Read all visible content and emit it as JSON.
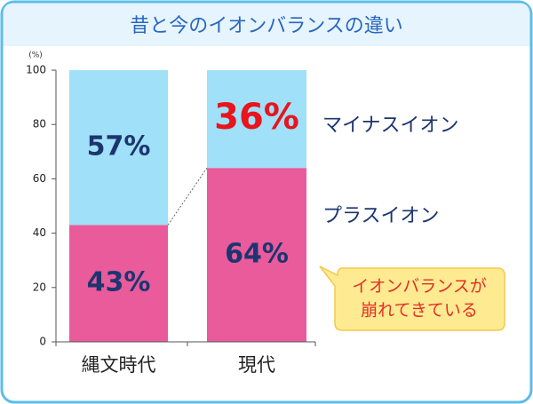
{
  "chart_data": {
    "type": "stacked_bar",
    "title": "昔と今のイオンバランスの違い",
    "y_unit": "(%)",
    "categories": [
      "縄文時代",
      "現代"
    ],
    "series": [
      {
        "name": "プラスイオン",
        "color": "#e95b9b",
        "values": [
          43,
          64
        ],
        "value_labels": [
          "43%",
          "64%"
        ],
        "label_colors": [
          "#1c3570",
          "#1c3570"
        ]
      },
      {
        "name": "マイナスイオン",
        "color": "#a0e0f8",
        "values": [
          57,
          36
        ],
        "value_labels": [
          "57%",
          "36%"
        ],
        "label_colors": [
          "#1c3570",
          "#e8141e"
        ]
      }
    ],
    "ylim": [
      0,
      100
    ],
    "yticks": [
      0,
      20,
      40,
      60,
      80,
      100
    ],
    "annotation": [
      "イオンバランスが",
      "崩れてきている"
    ]
  }
}
